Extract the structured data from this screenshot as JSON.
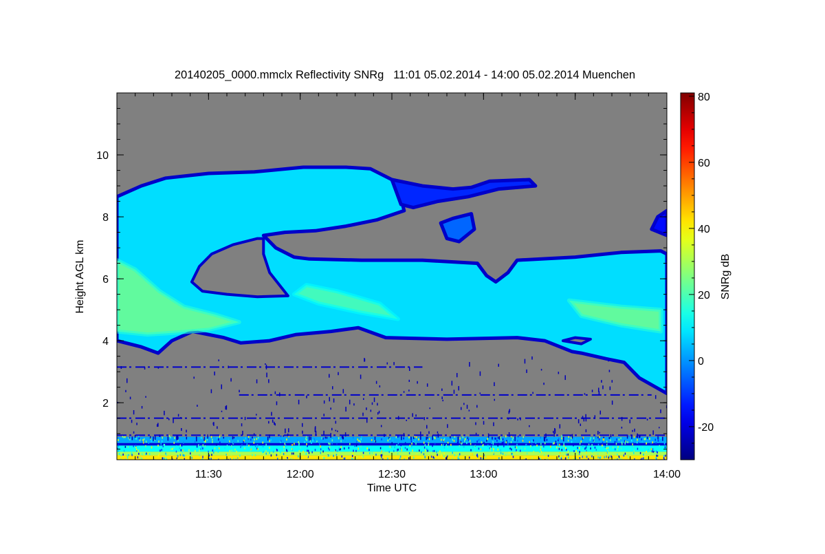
{
  "chart_data": {
    "type": "heatmap",
    "title": "20140205_0000.mmclx Reflectivity SNRg   11:01 05.02.2014 - 14:00 05.02.2014 Muenchen",
    "xlabel": "Time UTC",
    "ylabel": "Height AGL km",
    "colorbar_label": "SNRg dB",
    "x_unit": "minutes since 11:00 UTC",
    "xlim": [
      0,
      180
    ],
    "ylim": [
      0.16,
      12
    ],
    "clim": [
      -30,
      81
    ],
    "x_ticks": [
      {
        "value": 30,
        "label": "11:30"
      },
      {
        "value": 60,
        "label": "12:00"
      },
      {
        "value": 90,
        "label": "12:30"
      },
      {
        "value": 120,
        "label": "13:00"
      },
      {
        "value": 150,
        "label": "13:30"
      },
      {
        "value": 180,
        "label": "14:00"
      }
    ],
    "y_ticks": [
      {
        "value": 2,
        "label": "2"
      },
      {
        "value": 4,
        "label": "4"
      },
      {
        "value": 6,
        "label": "6"
      },
      {
        "value": 8,
        "label": "8"
      },
      {
        "value": 10,
        "label": "10"
      }
    ],
    "colorbar_ticks": [
      {
        "value": -20,
        "label": "-20"
      },
      {
        "value": 0,
        "label": "0"
      },
      {
        "value": 20,
        "label": "20"
      },
      {
        "value": 40,
        "label": "40"
      },
      {
        "value": 60,
        "label": "60"
      },
      {
        "value": 80,
        "label": "80"
      }
    ],
    "colormap": "jet",
    "no_data_color": "#808080",
    "echo_regions": [
      {
        "name": "main-cloud",
        "snr_edge": -22,
        "snr_fill": 8,
        "points": [
          [
            0,
            8.65
          ],
          [
            8,
            9.0
          ],
          [
            16,
            9.25
          ],
          [
            30,
            9.4
          ],
          [
            45,
            9.45
          ],
          [
            61,
            9.6
          ],
          [
            75,
            9.6
          ],
          [
            83,
            9.55
          ],
          [
            90,
            9.2
          ],
          [
            93,
            8.6
          ],
          [
            94,
            8.2
          ],
          [
            85,
            7.9
          ],
          [
            75,
            7.7
          ],
          [
            65,
            7.55
          ],
          [
            55,
            7.5
          ],
          [
            48,
            7.4
          ],
          [
            52,
            7.0
          ],
          [
            58,
            6.7
          ],
          [
            63,
            6.64
          ],
          [
            80,
            6.6
          ],
          [
            100,
            6.6
          ],
          [
            118,
            6.5
          ],
          [
            121,
            6.1
          ],
          [
            124,
            5.9
          ],
          [
            128,
            6.2
          ],
          [
            131,
            6.6
          ],
          [
            150,
            6.7
          ],
          [
            165,
            6.85
          ],
          [
            178,
            6.9
          ],
          [
            180,
            6.8
          ],
          [
            180,
            2.3
          ],
          [
            171,
            2.8
          ],
          [
            166,
            3.3
          ],
          [
            160,
            3.42
          ],
          [
            152,
            3.6
          ],
          [
            149,
            3.65
          ],
          [
            140,
            4.0
          ],
          [
            131,
            4.1
          ],
          [
            108,
            4.05
          ],
          [
            88,
            4.1
          ],
          [
            79,
            4.42
          ],
          [
            70,
            4.3
          ],
          [
            58.7,
            4.2
          ],
          [
            50,
            4.0
          ],
          [
            40.6,
            3.93
          ],
          [
            35,
            4.1
          ],
          [
            24.8,
            4.3
          ],
          [
            18,
            4.0
          ],
          [
            13.5,
            3.6
          ],
          [
            8,
            3.8
          ],
          [
            0,
            4.0
          ]
        ]
      },
      {
        "name": "upper-strip",
        "snr_edge": -22,
        "snr_fill": -12,
        "points": [
          [
            90,
            9.2
          ],
          [
            100,
            9.0
          ],
          [
            110,
            8.9
          ],
          [
            116,
            8.95
          ],
          [
            122,
            9.15
          ],
          [
            135,
            9.2
          ],
          [
            137,
            9.0
          ],
          [
            125,
            8.9
          ],
          [
            115,
            8.65
          ],
          [
            105,
            8.5
          ],
          [
            97,
            8.3
          ],
          [
            93,
            8.4
          ]
        ]
      },
      {
        "name": "blob-1300",
        "snr_edge": -22,
        "snr_fill": -5,
        "points": [
          [
            106,
            7.8
          ],
          [
            110,
            7.95
          ],
          [
            116,
            8.1
          ],
          [
            117,
            7.6
          ],
          [
            112,
            7.2
          ],
          [
            108,
            7.3
          ]
        ]
      },
      {
        "name": "blob-right-edge",
        "snr_edge": -22,
        "snr_fill": -15,
        "points": [
          [
            175,
            7.6
          ],
          [
            177,
            8.0
          ],
          [
            180,
            8.2
          ],
          [
            180,
            7.4
          ]
        ]
      }
    ],
    "echo_holes": [
      {
        "name": "hole-arch",
        "points": [
          [
            24.5,
            5.9
          ],
          [
            27,
            6.4
          ],
          [
            31,
            6.8
          ],
          [
            38,
            7.1
          ],
          [
            46,
            7.3
          ],
          [
            48,
            7.3
          ],
          [
            48,
            6.8
          ],
          [
            50,
            6.2
          ],
          [
            54,
            5.7
          ],
          [
            56,
            5.45
          ],
          [
            46,
            5.42
          ],
          [
            36,
            5.5
          ],
          [
            28,
            5.6
          ]
        ]
      },
      {
        "name": "hole-right",
        "points": [
          [
            146,
            4.0
          ],
          [
            150,
            4.1
          ],
          [
            155,
            4.05
          ],
          [
            152,
            3.9
          ]
        ]
      }
    ],
    "echo_cores": [
      {
        "name": "core-left",
        "snr": 24,
        "points": [
          [
            0,
            4.3
          ],
          [
            0,
            6.6
          ],
          [
            6,
            6.3
          ],
          [
            14,
            5.6
          ],
          [
            22,
            5.1
          ],
          [
            32,
            4.85
          ],
          [
            40,
            4.6
          ],
          [
            30,
            4.35
          ],
          [
            18,
            4.25
          ],
          [
            10,
            4.2
          ]
        ]
      },
      {
        "name": "core-mid",
        "snr": 20,
        "points": [
          [
            58,
            5.5
          ],
          [
            66,
            5.2
          ],
          [
            80,
            4.9
          ],
          [
            92,
            4.7
          ],
          [
            86,
            5.2
          ],
          [
            72,
            5.6
          ],
          [
            62,
            5.8
          ]
        ]
      },
      {
        "name": "core-right",
        "snr": 24,
        "points": [
          [
            148,
            5.3
          ],
          [
            165,
            5.1
          ],
          [
            178,
            5.0
          ],
          [
            178,
            4.3
          ],
          [
            165,
            4.5
          ],
          [
            152,
            4.8
          ]
        ]
      }
    ],
    "ground_clutter": [
      {
        "h0": 0.16,
        "h1": 0.3,
        "snr": 42
      },
      {
        "h0": 0.3,
        "h1": 0.42,
        "snr": 30
      },
      {
        "h0": 0.42,
        "h1": 0.62,
        "snr": 12
      },
      {
        "h0": 0.62,
        "h1": 0.7,
        "snr": -20
      },
      {
        "h0": 0.7,
        "h1": 0.9,
        "snr": 2
      }
    ],
    "noise_lines": [
      {
        "h": 3.15,
        "t0": 0,
        "t1": 100,
        "snr": -22
      },
      {
        "h": 2.25,
        "t0": 40,
        "t1": 175,
        "snr": -22
      },
      {
        "h": 1.5,
        "t0": 0,
        "t1": 180,
        "snr": -22
      },
      {
        "h": 0.95,
        "t0": 0,
        "t1": 180,
        "snr": -20
      }
    ]
  }
}
